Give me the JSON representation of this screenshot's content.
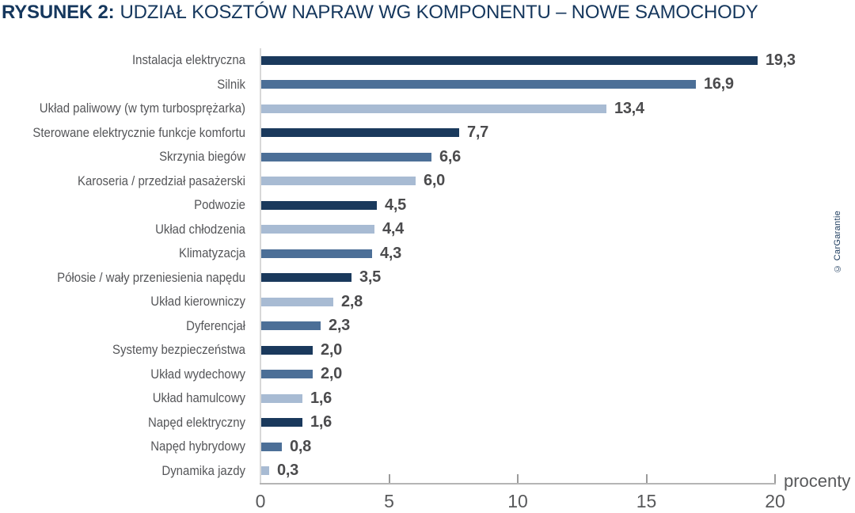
{
  "title": {
    "label": "RYSUNEK 2:",
    "text": "UDZIAŁ KOSZTÓW NAPRAW WG KOMPONENTU – NOWE SAMOCHODY"
  },
  "credit": "© CarGarantie",
  "chart_data": {
    "type": "bar",
    "orientation": "horizontal",
    "title": "RYSUNEK 2: UDZIAŁ KOSZTÓW NAPRAW WG KOMPONENTU – NOWE SAMOCHODY",
    "xlabel": "procenty",
    "xlim": [
      0,
      20
    ],
    "x_ticks": [
      0,
      5,
      10,
      15,
      20
    ],
    "x_tick_labels": [
      "0",
      "5",
      "10",
      "15",
      "20"
    ],
    "grid": false,
    "legend": false,
    "categories": [
      "Instalacja elektryczna",
      "Silnik",
      "Układ paliwowy (w tym turbosprężarka)",
      "Sterowane elektrycznie funkcje komfortu",
      "Skrzynia biegów",
      "Karoseria / przedział pasażerski",
      "Podwozie",
      "Układ chłodzenia",
      "Klimatyzacja",
      "Półosie / wały przeniesienia napędu",
      "Układ kierowniczy",
      "Dyferencjał",
      "Systemy bezpieczeństwa",
      "Układ wydechowy",
      "Układ hamulcowy",
      "Napęd elektryczny",
      "Napęd hybrydowy",
      "Dynamika jazdy"
    ],
    "values": [
      19.3,
      16.9,
      13.4,
      7.7,
      6.6,
      6.0,
      4.5,
      4.4,
      4.3,
      3.5,
      2.8,
      2.3,
      2.0,
      2.0,
      1.6,
      1.6,
      0.8,
      0.3
    ],
    "value_labels": [
      "19,3",
      "16,9",
      "13,4",
      "7,7",
      "6,6",
      "6,0",
      "4,5",
      "4,4",
      "4,3",
      "3,5",
      "2,8",
      "2,3",
      "2,0",
      "2,0",
      "1,6",
      "1,6",
      "0,8",
      "0,3"
    ],
    "bar_colors": [
      "dark",
      "medium",
      "light",
      "dark",
      "medium",
      "light",
      "dark",
      "light",
      "medium",
      "dark",
      "light",
      "medium",
      "dark",
      "medium",
      "light",
      "dark",
      "medium",
      "light"
    ],
    "palette": {
      "dark": "#1A395C",
      "medium": "#4C6F97",
      "light": "#A8BBD3"
    },
    "text_colors": {
      "title": "#15375D",
      "category_label": "#555659",
      "value_label": "#4B4B4D",
      "tick_label": "#58595B",
      "credit": "#1B3A5C"
    }
  }
}
